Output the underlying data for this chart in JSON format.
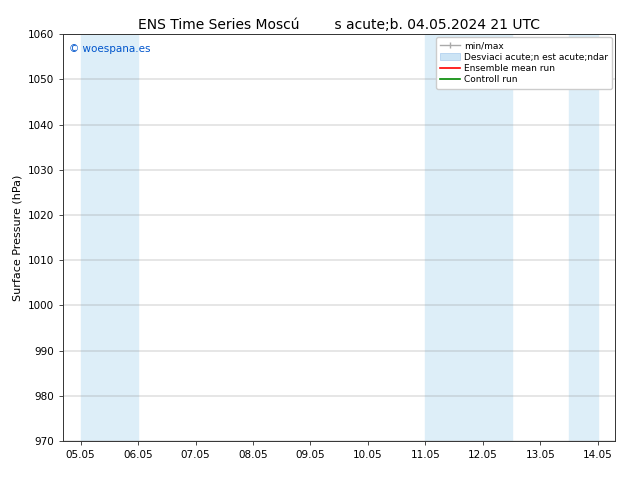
{
  "title": "ENS Time Series Moscú        s acute;b. 04.05.2024 21 UTC",
  "ylabel": "Surface Pressure (hPa)",
  "ylim": [
    970,
    1060
  ],
  "yticks": [
    970,
    980,
    990,
    1000,
    1010,
    1020,
    1030,
    1040,
    1050,
    1060
  ],
  "xtick_labels": [
    "05.05",
    "06.05",
    "07.05",
    "08.05",
    "09.05",
    "10.05",
    "11.05",
    "12.05",
    "13.05",
    "14.05"
  ],
  "x_num_ticks": 10,
  "xlim_start": 0,
  "xlim_end": 9,
  "shaded_bands": [
    {
      "x_start": 0.0,
      "x_end": 1.0
    },
    {
      "x_start": 6.0,
      "x_end": 7.5
    },
    {
      "x_start": 8.5,
      "x_end": 9.0
    }
  ],
  "shade_color": "#ddeef8",
  "watermark": "© woespana.es",
  "watermark_color": "#0055cc",
  "background_color": "#ffffff",
  "plot_bg_color": "#ffffff",
  "grid_color": "#888888",
  "legend_labels": [
    "min/max",
    "Desviaci acute;n est acute;ndar",
    "Ensemble mean run",
    "Controll run"
  ],
  "legend_colors": [
    "#999999",
    "#cce4f5",
    "#ff0000",
    "#008800"
  ],
  "title_fontsize": 10,
  "label_fontsize": 8,
  "tick_fontsize": 7.5
}
